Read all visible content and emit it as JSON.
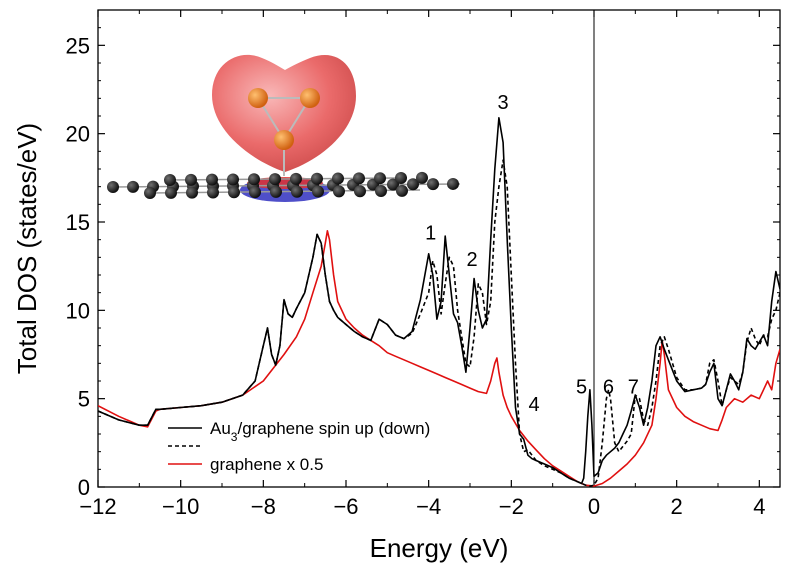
{
  "chart_data": {
    "type": "line",
    "title": "",
    "xlabel": "Energy (eV)",
    "ylabel": "Total DOS (states/eV)",
    "xlim": [
      -12,
      4.5
    ],
    "ylim": [
      0,
      27
    ],
    "xticks": [
      -12,
      -10,
      -8,
      -6,
      -4,
      -2,
      0,
      2,
      4
    ],
    "yticks": [
      0,
      5,
      10,
      15,
      20,
      25
    ],
    "grid": false,
    "fermi_line_at": 0,
    "legend": {
      "placement": "bottom-left",
      "entries": [
        {
          "text_main": "Au",
          "text_sub": "3",
          "text_rest": "/graphene spin up (down)",
          "style": "solid",
          "color": "#000000"
        },
        {
          "text_main": "",
          "text_sub": "",
          "text_rest": "",
          "style": "dashed",
          "color": "#000000"
        },
        {
          "text_main": "graphene x 0.5",
          "text_sub": "",
          "text_rest": "",
          "style": "solid",
          "color": "#e01010"
        }
      ]
    },
    "peak_labels": [
      {
        "text": "1",
        "x": -3.95,
        "y": 14.0
      },
      {
        "text": "2",
        "x": -2.95,
        "y": 12.5
      },
      {
        "text": "3",
        "x": -2.2,
        "y": 21.4
      },
      {
        "text": "4",
        "x": -1.45,
        "y": 4.3
      },
      {
        "text": "5",
        "x": -0.3,
        "y": 5.3
      },
      {
        "text": "6",
        "x": 0.35,
        "y": 5.3
      },
      {
        "text": "7",
        "x": 0.95,
        "y": 5.3
      }
    ],
    "series": [
      {
        "name": "Au3/graphene spin up",
        "style": "solid",
        "color": "#000000",
        "x": [
          -12,
          -11.5,
          -11,
          -10.8,
          -10.6,
          -10.5,
          -10,
          -9.5,
          -9,
          -8.5,
          -8.2,
          -8.0,
          -7.9,
          -7.8,
          -7.7,
          -7.6,
          -7.5,
          -7.4,
          -7.3,
          -7.2,
          -7.0,
          -6.9,
          -6.8,
          -6.7,
          -6.6,
          -6.5,
          -6.4,
          -6.3,
          -6.2,
          -6.0,
          -5.8,
          -5.6,
          -5.4,
          -5.2,
          -5.0,
          -4.8,
          -4.6,
          -4.4,
          -4.2,
          -4.0,
          -3.9,
          -3.8,
          -3.7,
          -3.6,
          -3.5,
          -3.4,
          -3.3,
          -3.2,
          -3.1,
          -3.0,
          -2.9,
          -2.8,
          -2.7,
          -2.6,
          -2.5,
          -2.4,
          -2.3,
          -2.2,
          -2.1,
          -2.0,
          -1.9,
          -1.8,
          -1.7,
          -1.6,
          -1.5,
          -1.4,
          -1.2,
          -1.0,
          -0.8,
          -0.6,
          -0.4,
          -0.3,
          -0.25,
          -0.2,
          -0.15,
          -0.1,
          -0.05,
          0.0,
          0.1,
          0.2,
          0.3,
          0.4,
          0.5,
          0.6,
          0.7,
          0.8,
          0.9,
          1.0,
          1.1,
          1.2,
          1.3,
          1.4,
          1.5,
          1.6,
          1.7,
          1.8,
          2.0,
          2.2,
          2.4,
          2.6,
          2.7,
          2.8,
          2.9,
          3.0,
          3.1,
          3.2,
          3.3,
          3.4,
          3.5,
          3.6,
          3.7,
          3.8,
          3.9,
          4.0,
          4.1,
          4.2,
          4.3,
          4.4,
          4.5
        ],
        "y": [
          4.3,
          3.8,
          3.5,
          3.5,
          4.4,
          4.4,
          4.5,
          4.6,
          4.8,
          5.2,
          6.0,
          8.0,
          9.0,
          7.5,
          6.9,
          8.0,
          10.6,
          9.8,
          9.6,
          10.1,
          11.0,
          12.0,
          13.0,
          14.3,
          13.8,
          12.0,
          10.5,
          10.0,
          9.6,
          9.2,
          8.8,
          8.5,
          8.3,
          9.5,
          9.2,
          8.6,
          8.4,
          8.8,
          10.6,
          13.2,
          12.0,
          9.5,
          10.5,
          14.2,
          12.0,
          9.8,
          9.3,
          8.0,
          6.5,
          9.0,
          11.8,
          10.0,
          9.0,
          9.5,
          14.0,
          18.0,
          20.9,
          19.5,
          14.0,
          9.0,
          4.5,
          3.0,
          2.7,
          1.8,
          1.6,
          1.5,
          1.3,
          1.1,
          0.8,
          0.5,
          0.3,
          0.2,
          0.5,
          2.0,
          4.0,
          5.5,
          3.5,
          0.6,
          0.8,
          1.5,
          1.8,
          2.0,
          2.2,
          2.5,
          3.0,
          3.5,
          4.3,
          5.2,
          4.5,
          3.5,
          4.5,
          6.0,
          8.0,
          8.5,
          7.8,
          7.2,
          6.0,
          5.4,
          5.5,
          5.6,
          5.8,
          6.5,
          7.0,
          5.0,
          4.6,
          5.5,
          6.4,
          6.0,
          5.5,
          6.5,
          8.4,
          8.0,
          7.8,
          8.2,
          8.6,
          8.0,
          10.5,
          12.2,
          11.2
        ]
      },
      {
        "name": "Au3/graphene spin down",
        "style": "dashed",
        "color": "#000000",
        "x": [
          -12,
          -11.5,
          -11,
          -10.8,
          -10.6,
          -10.5,
          -10,
          -9.5,
          -9,
          -8.5,
          -8.2,
          -8.0,
          -7.9,
          -7.8,
          -7.7,
          -7.6,
          -7.5,
          -7.4,
          -7.3,
          -7.2,
          -7.0,
          -6.9,
          -6.8,
          -6.7,
          -6.6,
          -6.5,
          -6.4,
          -6.3,
          -6.2,
          -6.0,
          -5.8,
          -5.6,
          -5.4,
          -5.2,
          -5.0,
          -4.8,
          -4.6,
          -4.4,
          -4.2,
          -4.0,
          -3.9,
          -3.8,
          -3.7,
          -3.6,
          -3.5,
          -3.4,
          -3.3,
          -3.2,
          -3.1,
          -3.0,
          -2.9,
          -2.8,
          -2.7,
          -2.6,
          -2.5,
          -2.4,
          -2.3,
          -2.2,
          -2.1,
          -2.0,
          -1.9,
          -1.8,
          -1.7,
          -1.6,
          -1.5,
          -1.4,
          -1.2,
          -1.0,
          -0.8,
          -0.6,
          -0.4,
          -0.3,
          -0.2,
          -0.1,
          0.0,
          0.1,
          0.2,
          0.3,
          0.35,
          0.4,
          0.5,
          0.6,
          0.7,
          0.8,
          0.9,
          1.0,
          1.1,
          1.2,
          1.3,
          1.4,
          1.5,
          1.6,
          1.7,
          1.8,
          2.0,
          2.2,
          2.4,
          2.6,
          2.7,
          2.8,
          2.9,
          3.0,
          3.1,
          3.2,
          3.3,
          3.4,
          3.5,
          3.6,
          3.7,
          3.8,
          3.9,
          4.0,
          4.1,
          4.2,
          4.3,
          4.4,
          4.5
        ],
        "y": [
          4.3,
          3.8,
          3.5,
          3.5,
          4.4,
          4.4,
          4.5,
          4.6,
          4.8,
          5.2,
          6.0,
          8.0,
          9.0,
          7.5,
          6.9,
          8.0,
          10.6,
          9.8,
          9.6,
          10.1,
          11.0,
          12.0,
          13.0,
          14.3,
          13.8,
          12.0,
          10.5,
          10.0,
          9.6,
          9.2,
          8.8,
          8.5,
          8.3,
          9.5,
          9.2,
          8.6,
          8.4,
          8.7,
          9.8,
          11.0,
          12.8,
          12.0,
          9.8,
          11.5,
          13.0,
          12.5,
          10.0,
          8.5,
          7.0,
          6.8,
          8.5,
          11.5,
          11.0,
          9.2,
          10.5,
          15.0,
          17.0,
          18.5,
          17.0,
          12.0,
          7.0,
          3.0,
          2.0,
          2.1,
          1.8,
          1.5,
          1.2,
          1.0,
          0.8,
          0.5,
          0.3,
          0.2,
          0.1,
          0.05,
          0.1,
          0.5,
          2.5,
          5.0,
          5.5,
          5.0,
          2.5,
          2.0,
          2.3,
          2.6,
          3.0,
          5.2,
          5.0,
          3.8,
          3.5,
          4.5,
          6.0,
          8.0,
          8.5,
          7.8,
          6.2,
          5.5,
          5.5,
          5.6,
          5.8,
          7.0,
          7.2,
          6.0,
          4.6,
          5.5,
          6.2,
          6.0,
          5.8,
          6.5,
          8.2,
          9.0,
          8.4,
          8.0,
          8.6,
          8.5,
          9.5,
          10.0,
          11.0
        ]
      },
      {
        "name": "graphene x 0.5",
        "style": "solid",
        "color": "#e01010",
        "x": [
          -12,
          -11.5,
          -11,
          -10.8,
          -10.6,
          -10.5,
          -10,
          -9.5,
          -9,
          -8.5,
          -8.0,
          -7.5,
          -7.2,
          -7.0,
          -6.8,
          -6.6,
          -6.5,
          -6.45,
          -6.4,
          -6.3,
          -6.2,
          -6.0,
          -5.8,
          -5.6,
          -5.4,
          -5.2,
          -5.0,
          -4.8,
          -4.6,
          -4.4,
          -4.2,
          -4.0,
          -3.8,
          -3.6,
          -3.4,
          -3.2,
          -3.0,
          -2.8,
          -2.6,
          -2.5,
          -2.4,
          -2.35,
          -2.3,
          -2.2,
          -2.1,
          -2.0,
          -1.8,
          -1.6,
          -1.4,
          -1.2,
          -1.0,
          -0.8,
          -0.6,
          -0.4,
          -0.2,
          0.0,
          0.2,
          0.4,
          0.6,
          0.8,
          1.0,
          1.2,
          1.4,
          1.5,
          1.6,
          1.65,
          1.7,
          1.8,
          2.0,
          2.2,
          2.4,
          2.6,
          2.8,
          3.0,
          3.1,
          3.2,
          3.4,
          3.6,
          3.8,
          4.0,
          4.1,
          4.2,
          4.3,
          4.4,
          4.5
        ],
        "y": [
          4.6,
          4.0,
          3.5,
          3.4,
          4.3,
          4.4,
          4.5,
          4.6,
          4.8,
          5.2,
          6.0,
          7.5,
          8.5,
          9.5,
          11.0,
          12.5,
          13.8,
          14.5,
          14.0,
          12.0,
          10.5,
          9.5,
          9.0,
          8.6,
          8.3,
          8.0,
          7.6,
          7.4,
          7.2,
          7.0,
          6.8,
          6.6,
          6.4,
          6.2,
          6.0,
          5.8,
          5.6,
          5.4,
          5.3,
          6.0,
          7.0,
          7.3,
          6.5,
          5.2,
          4.5,
          4.0,
          3.2,
          2.6,
          2.1,
          1.6,
          1.2,
          0.9,
          0.6,
          0.3,
          0.1,
          0.05,
          0.2,
          0.5,
          0.9,
          1.3,
          1.8,
          2.5,
          3.5,
          5.0,
          7.0,
          8.3,
          7.5,
          5.5,
          4.5,
          4.0,
          3.7,
          3.5,
          3.3,
          3.2,
          3.8,
          4.5,
          5.0,
          4.8,
          5.2,
          5.0,
          5.5,
          6.0,
          5.5,
          7.0,
          7.8
        ]
      }
    ]
  }
}
